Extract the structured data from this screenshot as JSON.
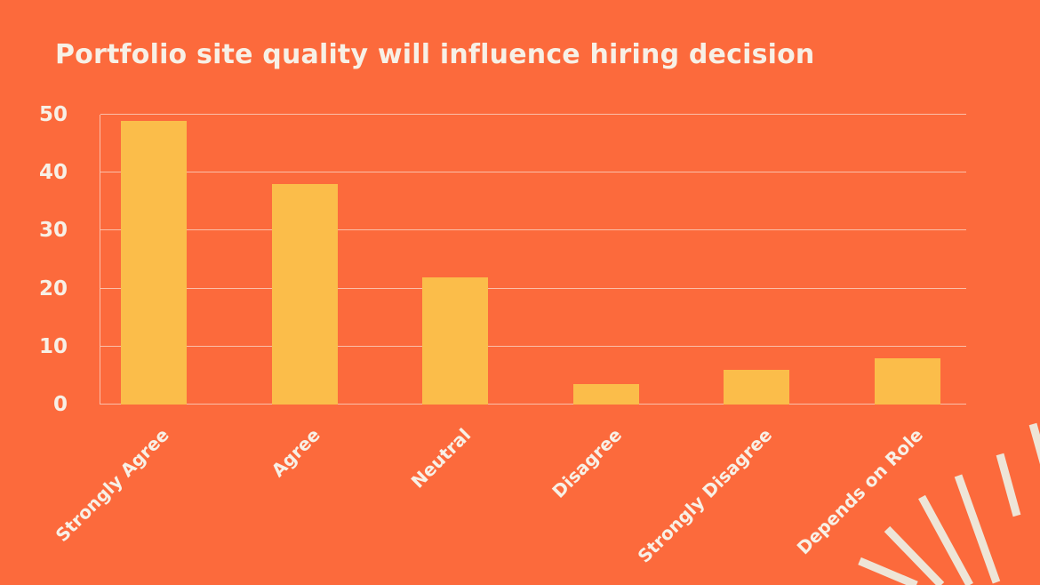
{
  "colors": {
    "background": "#FC6A3C",
    "bar": "#FBBD4A",
    "text": "#F7F0E6",
    "gridline": "rgba(250, 236, 227, 0.65)",
    "rays": "#EEE5D7"
  },
  "chart_data": {
    "type": "bar",
    "title": "Portfolio site quality will influence hiring decision",
    "categories": [
      "Strongly Agree",
      "Agree",
      "Neutral",
      "Disagree",
      "Strongly Disagree",
      "Depends on Role"
    ],
    "values": [
      49,
      38,
      22,
      3.5,
      6,
      8
    ],
    "xlabel": "",
    "ylabel": "",
    "ylim": [
      0,
      50
    ],
    "yticks": [
      0,
      10,
      20,
      30,
      40,
      50
    ],
    "grid": true,
    "legend": false,
    "x_tick_rotation_deg": 45
  },
  "decoration": {
    "name": "sunburst-rays",
    "position": "bottom-right"
  }
}
